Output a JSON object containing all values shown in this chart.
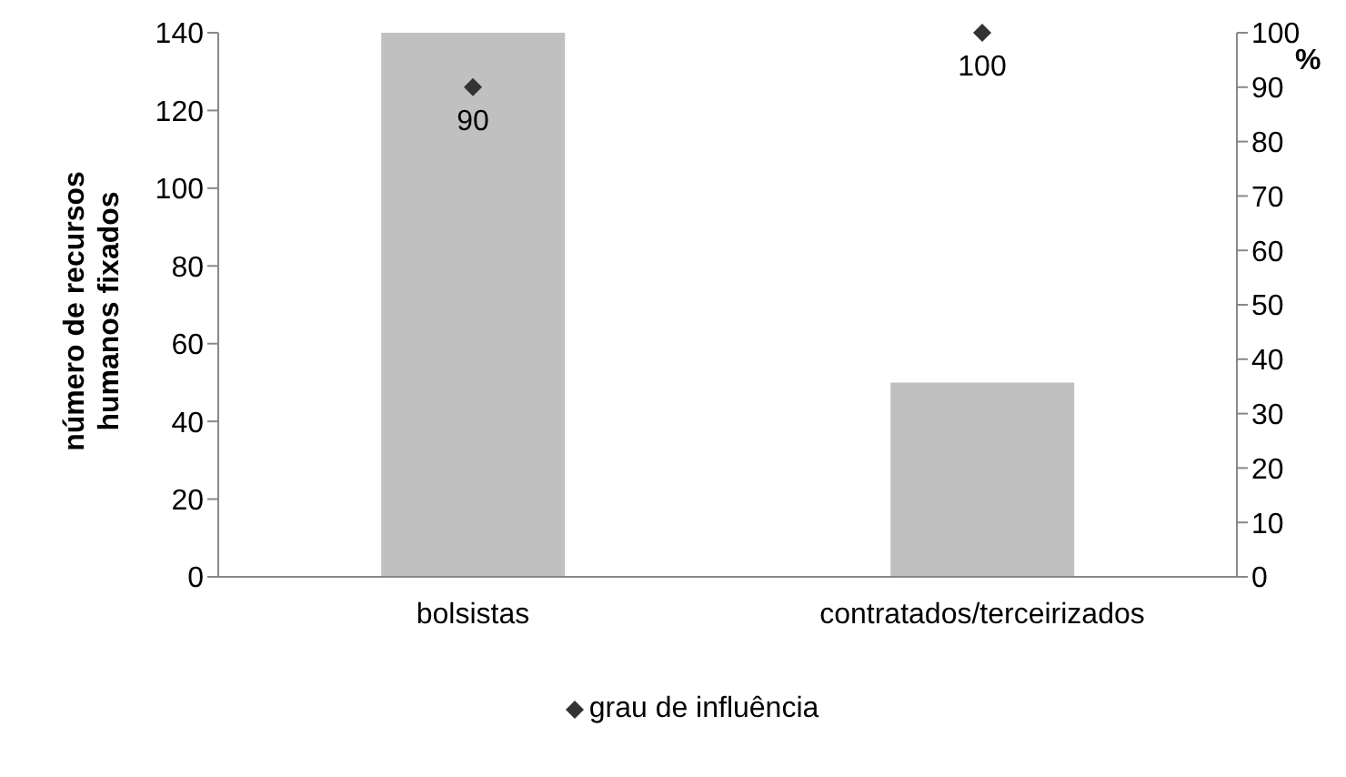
{
  "chart_data": {
    "type": "bar",
    "ylabel": "número de recursos humanos fixados",
    "y2label": "%",
    "categories": [
      "bolsistas",
      "contratados/terceirizados"
    ],
    "series": [
      {
        "color": "#c0c0c0",
        "values": [
          140,
          50
        ]
      },
      {
        "type": "scatter",
        "name": "grau de influência",
        "color": "#333333",
        "axis": "y2",
        "marker": "diamond",
        "values": [
          90,
          100
        ],
        "value_labels": [
          "90",
          "100"
        ]
      }
    ],
    "ylim": [
      0,
      140
    ],
    "yticks": [
      0,
      20,
      40,
      60,
      80,
      100,
      120,
      140
    ],
    "y2lim": [
      0,
      100
    ],
    "y2ticks": [
      0,
      10,
      20,
      30,
      40,
      50,
      60,
      70,
      80,
      90,
      100
    ],
    "grid": false,
    "legend": "bottom"
  }
}
